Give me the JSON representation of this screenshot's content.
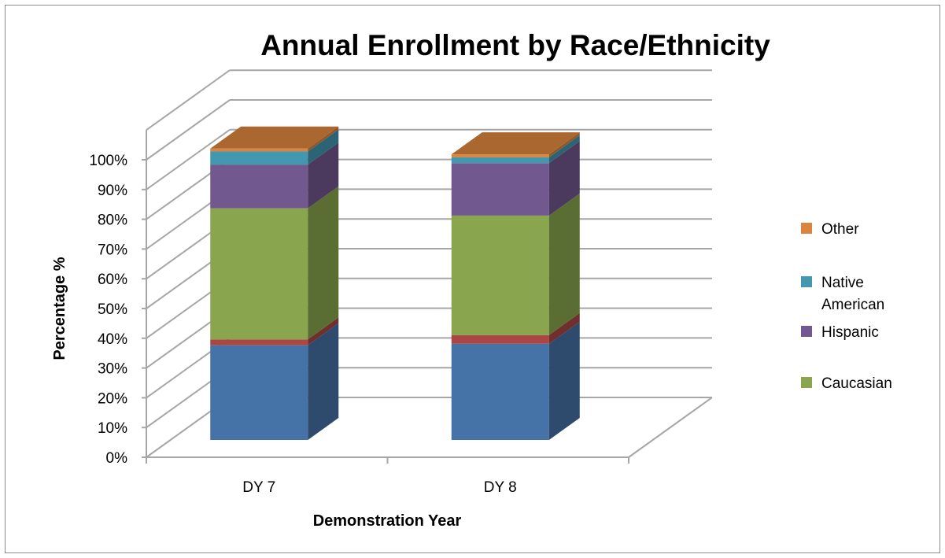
{
  "chart_data": {
    "type": "bar",
    "stacked": true,
    "three_d": true,
    "title": "Annual Enrollment by Race/Ethnicity",
    "xlabel": "Demonstration Year",
    "ylabel": "Percentage %",
    "categories": [
      "DY 7",
      "DY 8"
    ],
    "ylim": [
      0,
      100
    ],
    "ytick_labels": [
      "0%",
      "10%",
      "20%",
      "30%",
      "40%",
      "50%",
      "60%",
      "70%",
      "80%",
      "90%",
      "100%"
    ],
    "grid": true,
    "legend_position": "right",
    "series": [
      {
        "key": "s1",
        "values": [
          32.5,
          33
        ],
        "color": "#4572a7"
      },
      {
        "key": "s2",
        "values": [
          2,
          3
        ],
        "color": "#aa4643"
      },
      {
        "key": "s3",
        "values": [
          45,
          41
        ],
        "color": "#89a54e"
      },
      {
        "name": "Hispanic",
        "values": [
          15,
          18
        ],
        "color": "#71588f"
      },
      {
        "name": "Native American",
        "values": [
          4.5,
          2
        ],
        "color": "#4198af"
      },
      {
        "name": "Other",
        "values": [
          1,
          1
        ],
        "color": "#db843d"
      }
    ],
    "legend": [
      {
        "label": "Other",
        "color": "#db843d"
      },
      {
        "label": "Native\nAmerican",
        "color": "#4198af"
      },
      {
        "label": "Hispanic",
        "color": "#71588f"
      },
      {
        "label": "Caucasian",
        "color": "#89a54e"
      }
    ]
  }
}
